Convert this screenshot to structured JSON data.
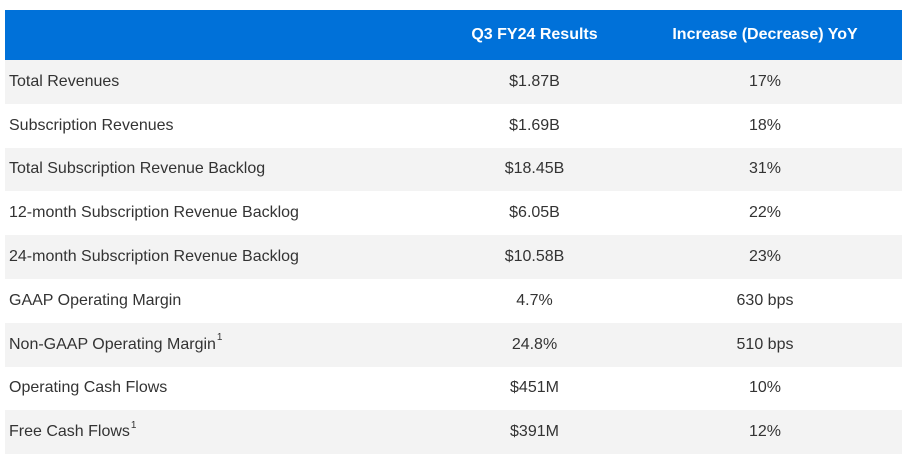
{
  "table": {
    "headers": {
      "metric": "",
      "result": "Q3 FY24 Results",
      "yoy": "Increase (Decrease) YoY"
    },
    "rows": [
      {
        "metric": "Total Revenues",
        "footnote": "",
        "result": "$1.87B",
        "yoy": "17%"
      },
      {
        "metric": "Subscription Revenues",
        "footnote": "",
        "result": "$1.69B",
        "yoy": "18%"
      },
      {
        "metric": "Total Subscription Revenue Backlog",
        "footnote": "",
        "result": "$18.45B",
        "yoy": "31%"
      },
      {
        "metric": "12-month Subscription Revenue Backlog",
        "footnote": "",
        "result": "$6.05B",
        "yoy": "22%"
      },
      {
        "metric": "24-month Subscription Revenue Backlog",
        "footnote": "",
        "result": "$10.58B",
        "yoy": "23%"
      },
      {
        "metric": "GAAP Operating Margin",
        "footnote": "",
        "result": "4.7%",
        "yoy": "630 bps"
      },
      {
        "metric": "Non-GAAP Operating Margin",
        "footnote": "1",
        "result": "24.8%",
        "yoy": "510 bps"
      },
      {
        "metric": "Operating Cash Flows",
        "footnote": "",
        "result": "$451M",
        "yoy": "10%"
      },
      {
        "metric": "Free Cash Flows",
        "footnote": "1",
        "result": "$391M",
        "yoy": "12%"
      }
    ]
  },
  "colors": {
    "header_background": "#0071d9",
    "header_text": "#ffffff",
    "row_alt_background": "#f3f3f3",
    "body_text": "#333333"
  }
}
